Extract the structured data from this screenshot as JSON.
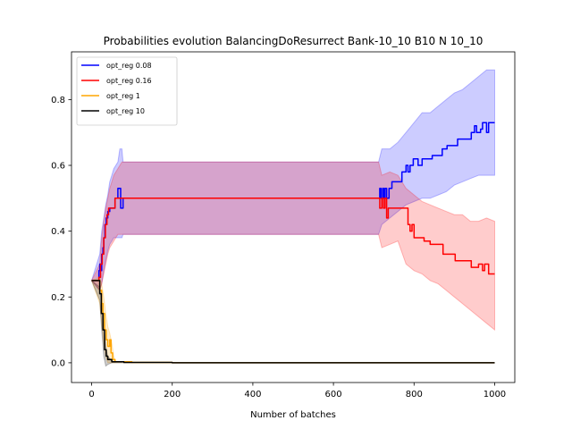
{
  "chart_data": {
    "type": "line",
    "title": "Probabilities evolution BalancingDoResurrect Bank-10_10 B10 N 10_10",
    "xlabel": "Number of batches",
    "ylabel": "",
    "xlim": [
      -50,
      1050
    ],
    "ylim": [
      -0.06,
      0.945
    ],
    "xticks": [
      0,
      200,
      400,
      600,
      800,
      1000
    ],
    "yticks": [
      0.0,
      0.2,
      0.4,
      0.6,
      0.8
    ],
    "xtick_labels": [
      "0",
      "200",
      "400",
      "600",
      "800",
      "1000"
    ],
    "ytick_labels": [
      "0.0",
      "0.2",
      "0.4",
      "0.6",
      "0.8"
    ],
    "grid": false,
    "legend_position": "top-left",
    "series": [
      {
        "name": "opt_reg 0.08",
        "color": "#0000ff",
        "band_color": "#0000ff",
        "band_opacity": 0.2,
        "points": [
          [
            0,
            0.25
          ],
          [
            15,
            0.25
          ],
          [
            18,
            0.28
          ],
          [
            20,
            0.3
          ],
          [
            22,
            0.28
          ],
          [
            25,
            0.33
          ],
          [
            28,
            0.35
          ],
          [
            30,
            0.38
          ],
          [
            33,
            0.42
          ],
          [
            36,
            0.44
          ],
          [
            40,
            0.46
          ],
          [
            45,
            0.47
          ],
          [
            50,
            0.47
          ],
          [
            55,
            0.47
          ],
          [
            58,
            0.5
          ],
          [
            62,
            0.5
          ],
          [
            65,
            0.53
          ],
          [
            70,
            0.53
          ],
          [
            72,
            0.47
          ],
          [
            76,
            0.47
          ],
          [
            78,
            0.5
          ],
          [
            200,
            0.5
          ],
          [
            400,
            0.5
          ],
          [
            600,
            0.5
          ],
          [
            712,
            0.5
          ],
          [
            715,
            0.53
          ],
          [
            718,
            0.5
          ],
          [
            722,
            0.53
          ],
          [
            725,
            0.5
          ],
          [
            728,
            0.53
          ],
          [
            732,
            0.5
          ],
          [
            738,
            0.53
          ],
          [
            745,
            0.55
          ],
          [
            760,
            0.55
          ],
          [
            770,
            0.58
          ],
          [
            778,
            0.58
          ],
          [
            780,
            0.6
          ],
          [
            785,
            0.58
          ],
          [
            790,
            0.6
          ],
          [
            798,
            0.62
          ],
          [
            810,
            0.6
          ],
          [
            820,
            0.62
          ],
          [
            835,
            0.62
          ],
          [
            845,
            0.63
          ],
          [
            868,
            0.63
          ],
          [
            870,
            0.65
          ],
          [
            880,
            0.65
          ],
          [
            882,
            0.66
          ],
          [
            905,
            0.66
          ],
          [
            908,
            0.68
          ],
          [
            940,
            0.68
          ],
          [
            942,
            0.7
          ],
          [
            950,
            0.72
          ],
          [
            955,
            0.7
          ],
          [
            965,
            0.71
          ],
          [
            970,
            0.73
          ],
          [
            978,
            0.73
          ],
          [
            980,
            0.7
          ],
          [
            985,
            0.73
          ],
          [
            1000,
            0.73
          ]
        ],
        "band": [
          [
            0,
            0.25,
            0.25
          ],
          [
            20,
            0.22,
            0.33
          ],
          [
            25,
            0.24,
            0.4
          ],
          [
            30,
            0.28,
            0.44
          ],
          [
            35,
            0.31,
            0.48
          ],
          [
            40,
            0.34,
            0.51
          ],
          [
            45,
            0.36,
            0.55
          ],
          [
            50,
            0.37,
            0.57
          ],
          [
            55,
            0.38,
            0.59
          ],
          [
            60,
            0.38,
            0.6
          ],
          [
            65,
            0.38,
            0.61
          ],
          [
            70,
            0.38,
            0.65
          ],
          [
            75,
            0.38,
            0.65
          ],
          [
            78,
            0.39,
            0.61
          ],
          [
            700,
            0.39,
            0.61
          ],
          [
            712,
            0.39,
            0.61
          ],
          [
            720,
            0.42,
            0.65
          ],
          [
            740,
            0.44,
            0.65
          ],
          [
            760,
            0.46,
            0.67
          ],
          [
            780,
            0.48,
            0.7
          ],
          [
            800,
            0.49,
            0.73
          ],
          [
            820,
            0.5,
            0.76
          ],
          [
            840,
            0.5,
            0.76
          ],
          [
            860,
            0.51,
            0.78
          ],
          [
            880,
            0.52,
            0.8
          ],
          [
            900,
            0.54,
            0.82
          ],
          [
            920,
            0.55,
            0.83
          ],
          [
            940,
            0.56,
            0.85
          ],
          [
            960,
            0.57,
            0.87
          ],
          [
            980,
            0.57,
            0.89
          ],
          [
            1000,
            0.57,
            0.89
          ]
        ]
      },
      {
        "name": "opt_reg 0.16",
        "color": "#ff0000",
        "band_color": "#ff0000",
        "band_opacity": 0.2,
        "points": [
          [
            0,
            0.25
          ],
          [
            15,
            0.25
          ],
          [
            18,
            0.26
          ],
          [
            22,
            0.3
          ],
          [
            26,
            0.33
          ],
          [
            30,
            0.38
          ],
          [
            34,
            0.42
          ],
          [
            38,
            0.45
          ],
          [
            42,
            0.47
          ],
          [
            48,
            0.47
          ],
          [
            52,
            0.47
          ],
          [
            58,
            0.5
          ],
          [
            200,
            0.5
          ],
          [
            400,
            0.5
          ],
          [
            600,
            0.5
          ],
          [
            712,
            0.5
          ],
          [
            715,
            0.47
          ],
          [
            720,
            0.5
          ],
          [
            724,
            0.47
          ],
          [
            728,
            0.5
          ],
          [
            732,
            0.44
          ],
          [
            736,
            0.47
          ],
          [
            760,
            0.47
          ],
          [
            780,
            0.47
          ],
          [
            785,
            0.42
          ],
          [
            790,
            0.4
          ],
          [
            795,
            0.42
          ],
          [
            800,
            0.38
          ],
          [
            820,
            0.38
          ],
          [
            825,
            0.37
          ],
          [
            840,
            0.36
          ],
          [
            870,
            0.36
          ],
          [
            872,
            0.33
          ],
          [
            900,
            0.33
          ],
          [
            902,
            0.31
          ],
          [
            940,
            0.31
          ],
          [
            942,
            0.29
          ],
          [
            960,
            0.3
          ],
          [
            970,
            0.28
          ],
          [
            975,
            0.3
          ],
          [
            985,
            0.27
          ],
          [
            1000,
            0.27
          ]
        ],
        "band": [
          [
            0,
            0.25,
            0.25
          ],
          [
            20,
            0.22,
            0.3
          ],
          [
            25,
            0.24,
            0.38
          ],
          [
            30,
            0.27,
            0.43
          ],
          [
            35,
            0.3,
            0.47
          ],
          [
            40,
            0.33,
            0.5
          ],
          [
            45,
            0.35,
            0.53
          ],
          [
            50,
            0.36,
            0.55
          ],
          [
            55,
            0.37,
            0.57
          ],
          [
            60,
            0.38,
            0.58
          ],
          [
            65,
            0.39,
            0.59
          ],
          [
            75,
            0.39,
            0.61
          ],
          [
            700,
            0.39,
            0.61
          ],
          [
            712,
            0.39,
            0.61
          ],
          [
            720,
            0.35,
            0.57
          ],
          [
            740,
            0.36,
            0.58
          ],
          [
            760,
            0.37,
            0.57
          ],
          [
            780,
            0.3,
            0.53
          ],
          [
            800,
            0.28,
            0.51
          ],
          [
            820,
            0.27,
            0.49
          ],
          [
            840,
            0.25,
            0.48
          ],
          [
            860,
            0.24,
            0.47
          ],
          [
            880,
            0.22,
            0.46
          ],
          [
            900,
            0.2,
            0.45
          ],
          [
            920,
            0.18,
            0.45
          ],
          [
            940,
            0.16,
            0.43
          ],
          [
            960,
            0.14,
            0.43
          ],
          [
            980,
            0.12,
            0.44
          ],
          [
            1000,
            0.1,
            0.43
          ]
        ]
      },
      {
        "name": "opt_reg 1",
        "color": "#ffa500",
        "band_color": "#ffa500",
        "band_opacity": 0.2,
        "points": [
          [
            0,
            0.25
          ],
          [
            15,
            0.25
          ],
          [
            20,
            0.22
          ],
          [
            25,
            0.18
          ],
          [
            28,
            0.15
          ],
          [
            32,
            0.1
          ],
          [
            36,
            0.07
          ],
          [
            40,
            0.05
          ],
          [
            45,
            0.07
          ],
          [
            48,
            0.03
          ],
          [
            52,
            0.01
          ],
          [
            58,
            0.003
          ],
          [
            100,
            0.001
          ],
          [
            200,
            0.0
          ],
          [
            1000,
            0.0
          ]
        ],
        "band": [
          [
            0,
            0.25,
            0.25
          ],
          [
            20,
            0.18,
            0.26
          ],
          [
            25,
            0.12,
            0.24
          ],
          [
            30,
            0.06,
            0.2
          ],
          [
            35,
            0.02,
            0.15
          ],
          [
            40,
            0.0,
            0.11
          ],
          [
            45,
            0.0,
            0.09
          ],
          [
            50,
            0.0,
            0.06
          ],
          [
            55,
            0.0,
            0.02
          ],
          [
            60,
            0.0,
            0.0
          ],
          [
            1000,
            0.0,
            0.0
          ]
        ]
      },
      {
        "name": "opt_reg 10",
        "color": "#000000",
        "band_color": "#000000",
        "band_opacity": 0.2,
        "points": [
          [
            0,
            0.25
          ],
          [
            15,
            0.25
          ],
          [
            20,
            0.21
          ],
          [
            24,
            0.15
          ],
          [
            28,
            0.1
          ],
          [
            32,
            0.04
          ],
          [
            36,
            0.02
          ],
          [
            40,
            0.01
          ],
          [
            50,
            0.003
          ],
          [
            80,
            0.001
          ],
          [
            200,
            0.0
          ],
          [
            1000,
            0.0
          ]
        ],
        "band": [
          [
            0,
            0.25,
            0.25
          ],
          [
            20,
            0.19,
            0.23
          ],
          [
            25,
            0.1,
            0.18
          ],
          [
            30,
            0.02,
            0.12
          ],
          [
            35,
            -0.01,
            0.05
          ],
          [
            40,
            -0.005,
            0.02
          ],
          [
            50,
            0.0,
            0.005
          ],
          [
            80,
            0.0,
            0.0
          ],
          [
            1000,
            0.0,
            0.0
          ]
        ]
      }
    ]
  }
}
